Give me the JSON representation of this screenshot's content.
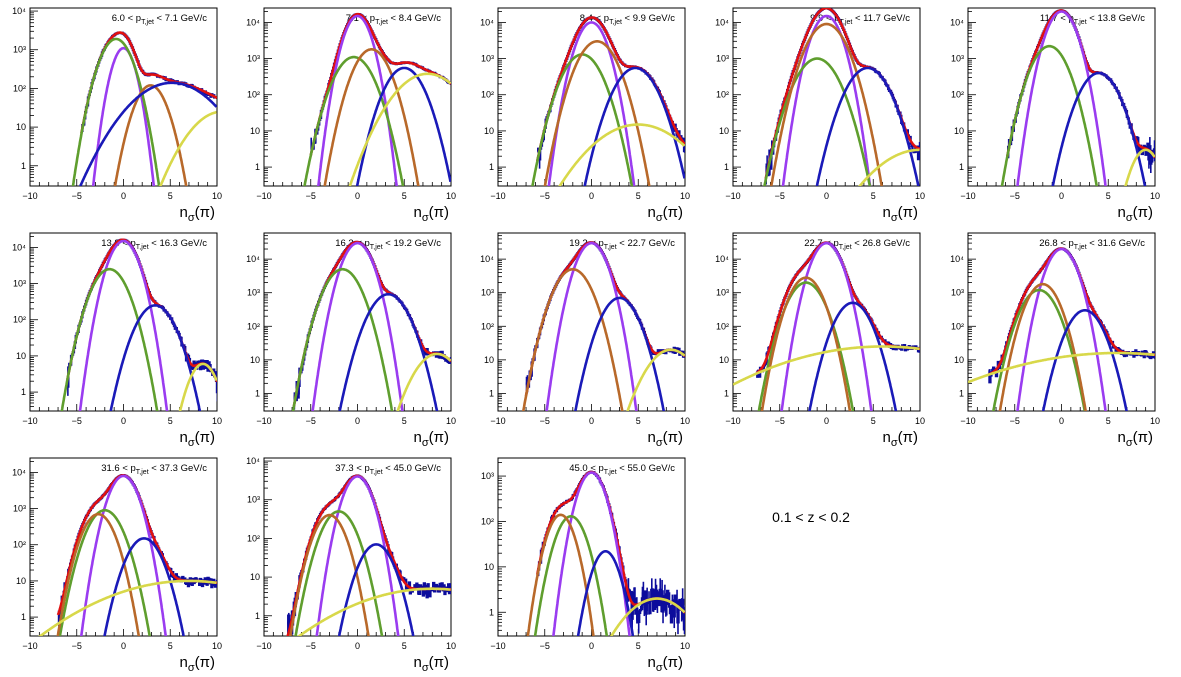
{
  "figure_label": "0.1 < z < 0.2",
  "axis": {
    "xlabel": "n",
    "xlabel_sub": "σ",
    "xlabel_tail": "(π)",
    "xlim": [
      -10,
      10
    ],
    "x_ticks": [
      -10,
      -5,
      0,
      5,
      10
    ],
    "y_scale": "log",
    "y_ticks": [
      {
        "value": 1,
        "label": "1"
      },
      {
        "value": 10,
        "label": "10"
      },
      {
        "value": 100,
        "label": "10²"
      },
      {
        "value": 1000,
        "label": "10³"
      },
      {
        "value": 10000,
        "label": "10⁴"
      }
    ]
  },
  "colors": {
    "data": "#0c0c9c",
    "total": "#e01010",
    "pion": "#9a3cf0",
    "kaon": "#5f9e2e",
    "proton": "#b8692a",
    "electron": "#1a1ab8",
    "extra": "#d8d84a"
  },
  "chart_data": [
    {
      "type": "line",
      "title": "6.0 < p_T,jet < 7.1 GeV/c",
      "title_prefix": "6.0 < p",
      "title_mid": " < 7.1 GeV/c",
      "ylim": [
        0.3,
        12000
      ],
      "series": [
        {
          "name": "",
          "role": "pion",
          "amp": 1100,
          "mu": 0.0,
          "sigma": 0.8
        },
        {
          "name": "",
          "role": "kaon",
          "amp": 1900,
          "mu": -0.8,
          "sigma": 1.1
        },
        {
          "name": "",
          "role": "proton",
          "amp": 120,
          "mu": 2.9,
          "sigma": 1.1
        },
        {
          "name": "",
          "role": "electron",
          "amp": 140,
          "mu": 5.2,
          "sigma": 2.8
        },
        {
          "name": "",
          "role": "extra",
          "amp": 25,
          "mu": 10.5,
          "sigma": 2.2
        }
      ],
      "data_range": [
        -4.5,
        9.7
      ]
    },
    {
      "type": "line",
      "title": "7.1 < p_T,jet < 8.4 GeV/c",
      "title_prefix": "7.1 < p",
      "title_mid": " < 8.4 GeV/c",
      "ylim": [
        0.3,
        25000
      ],
      "series": [
        {
          "name": "",
          "role": "pion",
          "amp": 15000,
          "mu": 0.0,
          "sigma": 0.9
        },
        {
          "name": "",
          "role": "kaon",
          "amp": 1100,
          "mu": -0.4,
          "sigma": 1.3
        },
        {
          "name": "",
          "role": "proton",
          "amp": 1800,
          "mu": 1.5,
          "sigma": 1.2
        },
        {
          "name": "",
          "role": "electron",
          "amp": 550,
          "mu": 5.0,
          "sigma": 1.3
        },
        {
          "name": "",
          "role": "extra",
          "amp": 380,
          "mu": 7.5,
          "sigma": 2.2
        }
      ],
      "data_range": [
        -5.0,
        10.0
      ]
    },
    {
      "type": "line",
      "title": "8.4 < p_T,jet < 9.9 GeV/c",
      "title_prefix": "8.4 < p",
      "title_mid": " < 9.9 GeV/c",
      "ylim": [
        0.3,
        25000
      ],
      "series": [
        {
          "name": "",
          "role": "pion",
          "amp": 10000,
          "mu": 0.0,
          "sigma": 1.0
        },
        {
          "name": "",
          "role": "kaon",
          "amp": 1300,
          "mu": -1.0,
          "sigma": 1.3
        },
        {
          "name": "",
          "role": "proton",
          "amp": 3000,
          "mu": 0.6,
          "sigma": 1.3
        },
        {
          "name": "",
          "role": "electron",
          "amp": 550,
          "mu": 4.7,
          "sigma": 1.4
        },
        {
          "name": "",
          "role": "extra",
          "amp": 15,
          "mu": 5.0,
          "sigma": 3.0
        }
      ],
      "data_range": [
        -5.8,
        10.0
      ]
    },
    {
      "type": "line",
      "title": "9.9 < p_T,jet < 11.7 GeV/c",
      "title_prefix": "9.9 < p",
      "title_mid": " < 11.7 GeV/c",
      "ylim": [
        0.3,
        25000
      ],
      "series": [
        {
          "name": "",
          "role": "pion",
          "amp": 15000,
          "mu": 0.0,
          "sigma": 1.0
        },
        {
          "name": "",
          "role": "kaon",
          "amp": 1000,
          "mu": -1.0,
          "sigma": 1.4
        },
        {
          "name": "",
          "role": "proton",
          "amp": 9000,
          "mu": 0.0,
          "sigma": 1.3
        },
        {
          "name": "",
          "role": "electron",
          "amp": 550,
          "mu": 4.4,
          "sigma": 1.4
        },
        {
          "name": "",
          "role": "extra",
          "amp": 3,
          "mu": 10.0,
          "sigma": 3.0
        }
      ],
      "data_range": [
        -6.5,
        10.0
      ]
    },
    {
      "type": "line",
      "title": "11.7 < p_T,jet < 13.8 GeV/c",
      "title_prefix": "11.7 < p",
      "title_mid": " < 13.8 GeV/c",
      "ylim": [
        0.3,
        25000
      ],
      "series": [
        {
          "name": "",
          "role": "pion",
          "amp": 20000,
          "mu": 0.0,
          "sigma": 1.0
        },
        {
          "name": "",
          "role": "kaon",
          "amp": 2200,
          "mu": -1.3,
          "sigma": 1.2
        },
        {
          "name": "",
          "role": "electron",
          "amp": 400,
          "mu": 4.0,
          "sigma": 1.3
        },
        {
          "name": "",
          "role": "extra",
          "amp": 3,
          "mu": 9.0,
          "sigma": 1.0
        }
      ],
      "data_range": [
        -5.8,
        10.0
      ]
    },
    {
      "type": "line",
      "title": "13.8 < p_T,jet < 16.3 GeV/c",
      "title_prefix": "13.8 < p",
      "title_mid": " < 16.3 GeV/c",
      "ylim": [
        0.3,
        25000
      ],
      "series": [
        {
          "name": "",
          "role": "pion",
          "amp": 15000,
          "mu": 0.0,
          "sigma": 1.0
        },
        {
          "name": "",
          "role": "kaon",
          "amp": 2500,
          "mu": -1.5,
          "sigma": 1.2
        },
        {
          "name": "",
          "role": "electron",
          "amp": 250,
          "mu": 3.4,
          "sigma": 1.3
        },
        {
          "name": "",
          "role": "extra",
          "amp": 6,
          "mu": 8.5,
          "sigma": 1.0
        }
      ],
      "data_range": [
        -6.0,
        10.0
      ]
    },
    {
      "type": "line",
      "title": "16.3 < p_T,jet < 19.2 GeV/c",
      "title_prefix": "16.3 < p",
      "title_mid": " < 19.2 GeV/c",
      "ylim": [
        0.3,
        60000
      ],
      "series": [
        {
          "name": "",
          "role": "pion",
          "amp": 30000,
          "mu": 0.0,
          "sigma": 1.0
        },
        {
          "name": "",
          "role": "kaon",
          "amp": 5000,
          "mu": -1.6,
          "sigma": 1.2
        },
        {
          "name": "",
          "role": "electron",
          "amp": 900,
          "mu": 3.3,
          "sigma": 1.3
        },
        {
          "name": "",
          "role": "extra",
          "amp": 15,
          "mu": 8.5,
          "sigma": 1.5
        }
      ],
      "data_range": [
        -6.8,
        10.0
      ]
    },
    {
      "type": "line",
      "title": "19.2 < p_T,jet < 22.7 GeV/c",
      "title_prefix": "19.2 < p",
      "title_mid": " < 22.7 GeV/c",
      "ylim": [
        0.3,
        60000
      ],
      "series": [
        {
          "name": "",
          "role": "pion",
          "amp": 30000,
          "mu": 0.0,
          "sigma": 1.0
        },
        {
          "name": "",
          "role": "proton",
          "amp": 5000,
          "mu": -2.0,
          "sigma": 1.2
        },
        {
          "name": "",
          "role": "electron",
          "amp": 700,
          "mu": 3.0,
          "sigma": 1.2
        },
        {
          "name": "",
          "role": "extra",
          "amp": 20,
          "mu": 8.5,
          "sigma": 1.6
        }
      ],
      "data_range": [
        -7.0,
        10.0
      ]
    },
    {
      "type": "line",
      "title": "22.7 < p_T,jet < 26.8 GeV/c",
      "title_prefix": "22.7 < p",
      "title_mid": " < 26.8 GeV/c",
      "ylim": [
        0.3,
        60000
      ],
      "series": [
        {
          "name": "",
          "role": "pion",
          "amp": 30000,
          "mu": 0.0,
          "sigma": 1.0
        },
        {
          "name": "",
          "role": "kaon",
          "amp": 2000,
          "mu": -2.2,
          "sigma": 1.2
        },
        {
          "name": "",
          "role": "proton",
          "amp": 2800,
          "mu": -2.2,
          "sigma": 1.1
        },
        {
          "name": "",
          "role": "electron",
          "amp": 500,
          "mu": 2.8,
          "sigma": 1.2
        },
        {
          "name": "",
          "role": "extra",
          "amp": 25,
          "mu": 6.0,
          "sigma": 7.0
        }
      ],
      "data_range": [
        -7.5,
        10.0
      ]
    },
    {
      "type": "line",
      "title": "26.8 < p_T,jet < 31.6 GeV/c",
      "title_prefix": "26.8 < p",
      "title_mid": " < 31.6 GeV/c",
      "ylim": [
        0.3,
        60000
      ],
      "series": [
        {
          "name": "",
          "role": "pion",
          "amp": 20000,
          "mu": 0.0,
          "sigma": 1.0
        },
        {
          "name": "",
          "role": "kaon",
          "amp": 1200,
          "mu": -2.4,
          "sigma": 1.2
        },
        {
          "name": "",
          "role": "proton",
          "amp": 1800,
          "mu": -2.0,
          "sigma": 1.1
        },
        {
          "name": "",
          "role": "electron",
          "amp": 300,
          "mu": 2.5,
          "sigma": 1.2
        },
        {
          "name": "",
          "role": "extra",
          "amp": 16,
          "mu": 6.0,
          "sigma": 8.0
        }
      ],
      "data_range": [
        -7.8,
        10.0
      ]
    },
    {
      "type": "line",
      "title": "31.6 < p_T,jet < 37.3 GeV/c",
      "title_prefix": "31.6 < p",
      "title_mid": " < 37.3 GeV/c",
      "ylim": [
        0.3,
        25000
      ],
      "series": [
        {
          "name": "",
          "role": "pion",
          "amp": 8000,
          "mu": 0.0,
          "sigma": 1.0
        },
        {
          "name": "",
          "role": "kaon",
          "amp": 900,
          "mu": -2.0,
          "sigma": 1.2
        },
        {
          "name": "",
          "role": "proton",
          "amp": 700,
          "mu": -2.7,
          "sigma": 1.1
        },
        {
          "name": "",
          "role": "electron",
          "amp": 150,
          "mu": 2.2,
          "sigma": 1.2
        },
        {
          "name": "",
          "role": "extra",
          "amp": 10,
          "mu": 7.0,
          "sigma": 6.0
        }
      ],
      "data_range": [
        -7.0,
        10.0
      ]
    },
    {
      "type": "line",
      "title": "37.3 < p_T,jet < 45.0 GeV/c",
      "title_prefix": "37.3 < p",
      "title_mid": " < 45.0 GeV/c",
      "ylim": [
        0.3,
        12000
      ],
      "series": [
        {
          "name": "",
          "role": "pion",
          "amp": 4000,
          "mu": 0.0,
          "sigma": 1.0
        },
        {
          "name": "",
          "role": "kaon",
          "amp": 500,
          "mu": -2.0,
          "sigma": 1.2
        },
        {
          "name": "",
          "role": "proton",
          "amp": 400,
          "mu": -3.0,
          "sigma": 1.1
        },
        {
          "name": "",
          "role": "electron",
          "amp": 70,
          "mu": 2.0,
          "sigma": 1.2
        },
        {
          "name": "",
          "role": "extra",
          "amp": 5,
          "mu": 8.0,
          "sigma": 6.0
        }
      ],
      "data_range": [
        -7.5,
        10.0
      ]
    },
    {
      "type": "line",
      "title": "45.0 < p_T,jet < 55.0 GeV/c",
      "title_prefix": "45.0 < p",
      "title_mid": " < 55.0 GeV/c",
      "ylim": [
        0.3,
        2500
      ],
      "series": [
        {
          "name": "",
          "role": "pion",
          "amp": 1200,
          "mu": 0.0,
          "sigma": 1.0
        },
        {
          "name": "",
          "role": "kaon",
          "amp": 130,
          "mu": -2.2,
          "sigma": 1.1
        },
        {
          "name": "",
          "role": "proton",
          "amp": 140,
          "mu": -3.3,
          "sigma": 1.0
        },
        {
          "name": "",
          "role": "electron",
          "amp": 22,
          "mu": 1.5,
          "sigma": 1.0
        },
        {
          "name": "",
          "role": "extra",
          "amp": 2,
          "mu": 7.0,
          "sigma": 2.5
        }
      ],
      "data_range": [
        -5.8,
        10.0
      ]
    }
  ]
}
